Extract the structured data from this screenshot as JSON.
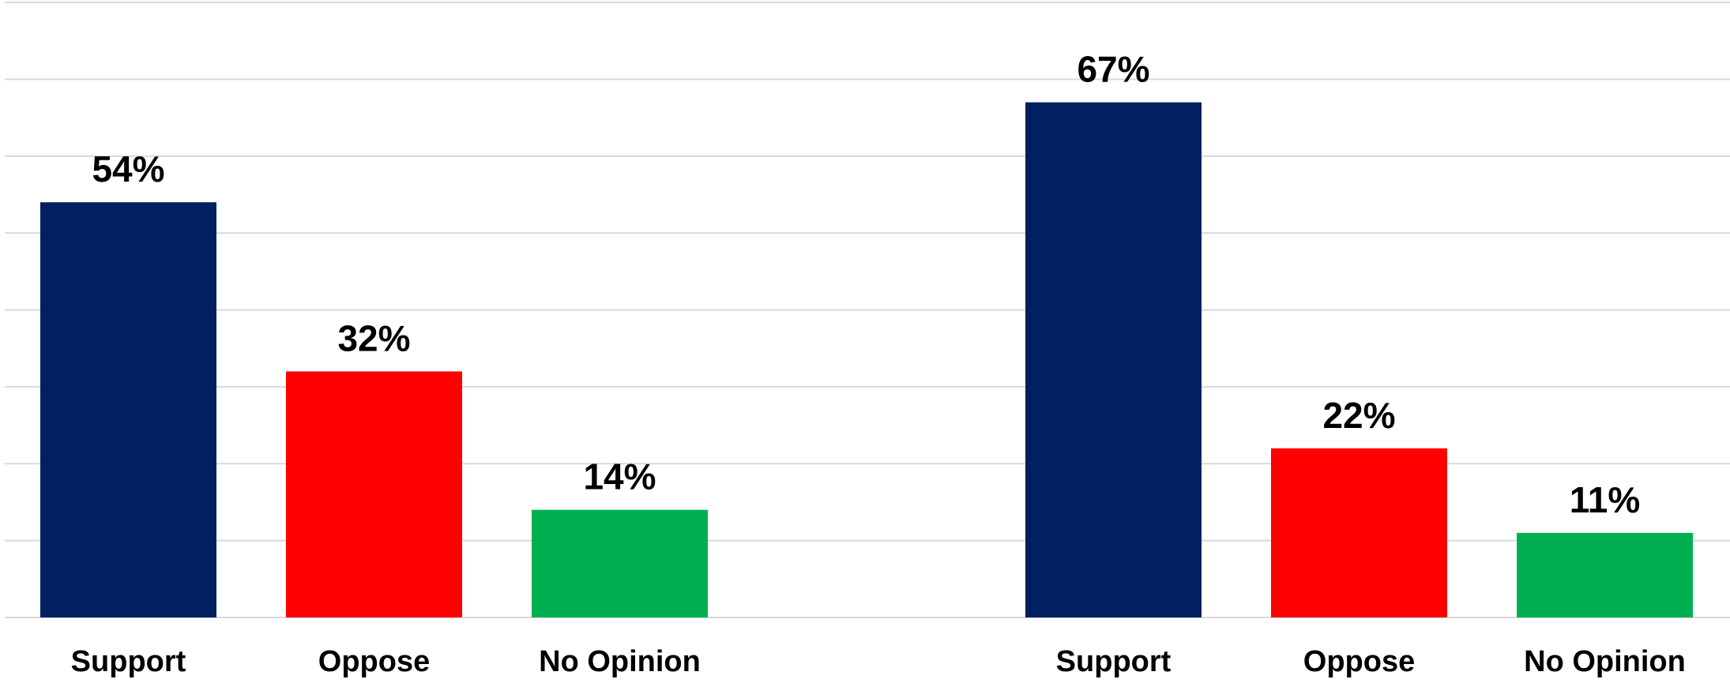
{
  "chart_data": [
    {
      "type": "bar",
      "categories": [
        "Support",
        "Oppose",
        "No Opinion"
      ],
      "values": [
        54,
        32,
        14
      ],
      "value_labels": [
        "54%",
        "32%",
        "14%"
      ],
      "colors": [
        "#002060",
        "#ff0000",
        "#00b050"
      ],
      "ylim": [
        0,
        80
      ],
      "grid": true,
      "title": "",
      "xlabel": "",
      "ylabel": ""
    },
    {
      "type": "bar",
      "categories": [
        "Support",
        "Oppose",
        "No Opinion"
      ],
      "values": [
        67,
        22,
        11
      ],
      "value_labels": [
        "67%",
        "22%",
        "11%"
      ],
      "colors": [
        "#002060",
        "#ff0000",
        "#00b050"
      ],
      "ylim": [
        0,
        80
      ],
      "grid": true,
      "title": "",
      "xlabel": "",
      "ylabel": ""
    }
  ]
}
